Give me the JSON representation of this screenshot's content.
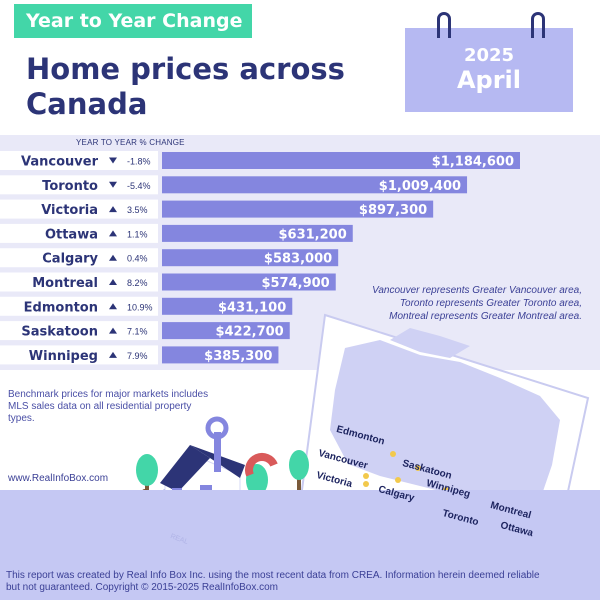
{
  "header": {
    "tag": "Year to Year Change",
    "title_line1": "Home prices across",
    "title_line2": "Canada",
    "year": "2025",
    "month": "April"
  },
  "column_header": "YEAR TO YEAR % CHANGE",
  "colors": {
    "bar": "#8486df",
    "accent": "#43d6a8",
    "navy": "#2c3477",
    "calendar": "#b6b9f2",
    "floor": "#c5c8f3"
  },
  "chart_data": {
    "type": "bar",
    "orientation": "horizontal",
    "categories": [
      "Vancouver",
      "Toronto",
      "Victoria",
      "Ottawa",
      "Calgary",
      "Montreal",
      "Edmonton",
      "Saskatoon",
      "Winnipeg"
    ],
    "values": [
      1184600,
      1009400,
      897300,
      631200,
      583000,
      574900,
      431100,
      422700,
      385300
    ],
    "value_labels": [
      "$1,184,600",
      "$1,009,400",
      "$897,300",
      "$631,200",
      "$583,000",
      "$574,900",
      "$431,100",
      "$422,700",
      "$385,300"
    ],
    "changes": [
      "-1.8%",
      "-5.4%",
      "3.5%",
      "1.1%",
      "0.4%",
      "8.2%",
      "10.9%",
      "7.1%",
      "7.9%"
    ],
    "change_directions": [
      "down",
      "down",
      "up",
      "up",
      "up",
      "up",
      "up",
      "up",
      "up"
    ],
    "xlim": [
      0,
      1184600
    ],
    "grid": false,
    "legend": "none"
  },
  "note_lines": [
    "Vancouver represents Greater Vancouver area,",
    "Toronto represents Greater Toronto area,",
    "Montreal represents Greater Montreal area."
  ],
  "benchmark": "Benchmark prices for major markets includes MLS sales data on all residential property types.",
  "site": "www.RealInfoBox.com",
  "map_labels": [
    "Edmonton",
    "Vancouver",
    "Saskatoon",
    "Victoria",
    "Calgary",
    "Winnipeg",
    "Montreal",
    "Toronto",
    "Ottawa"
  ],
  "sign_text": "REAL",
  "footer": "This report was created by Real Info Box Inc. using the most recent data from CREA. Information herein deemed reliable but not guaranteed. Copyright © 2015-2025 RealInfoBox.com"
}
